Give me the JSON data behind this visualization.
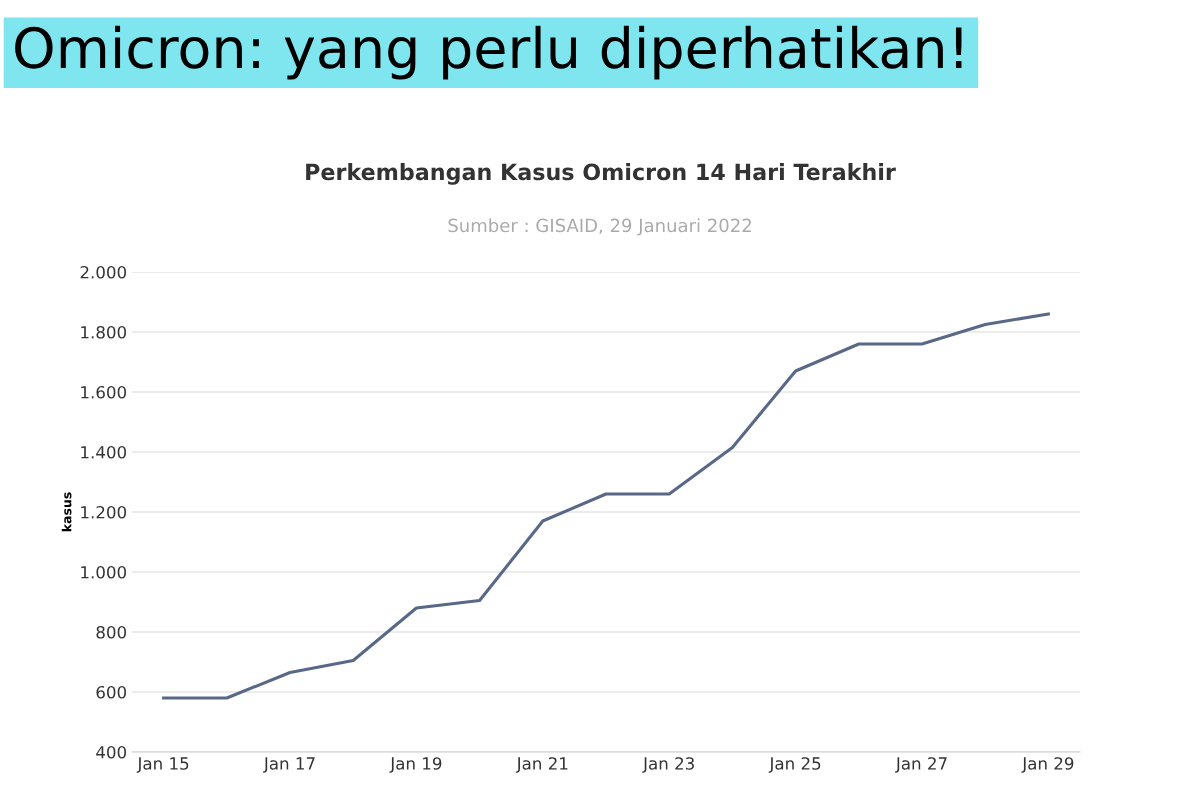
{
  "chart_data": {
    "type": "line",
    "title": "Perkembangan Kasus Omicron 14 Hari Terakhir",
    "subtitle": "Sumber : GISAID, 29 Januari 2022",
    "ylabel": "kasus",
    "annotations": [
      "Omicron: yang perlu diperhatikan!"
    ],
    "x": [
      "2022-01-15",
      "2022-01-16",
      "2022-01-17",
      "2022-01-18",
      "2022-01-19",
      "2022-01-20",
      "2022-01-21",
      "2022-01-22",
      "2022-01-23",
      "2022-01-24",
      "2022-01-25",
      "2022-01-26",
      "2022-01-27",
      "2022-01-28",
      "2022-01-29"
    ],
    "series": [
      {
        "color": "#5a6888",
        "values": [
          580,
          580,
          665,
          705,
          880,
          905,
          1170,
          1260,
          1260,
          1415,
          1670,
          1760,
          1760,
          1825,
          1860
        ]
      }
    ],
    "xlim": [
      "2022-01-14T12:00",
      "2022-01-29T12:00"
    ],
    "xticks": [
      {
        "value": "2022-01-15",
        "label": "Jan 15"
      },
      {
        "value": "2022-01-17",
        "label": "Jan 17"
      },
      {
        "value": "2022-01-19",
        "label": "Jan 19"
      },
      {
        "value": "2022-01-21",
        "label": "Jan 21"
      },
      {
        "value": "2022-01-23",
        "label": "Jan 23"
      },
      {
        "value": "2022-01-25",
        "label": "Jan 25"
      },
      {
        "value": "2022-01-27",
        "label": "Jan 27"
      },
      {
        "value": "2022-01-29",
        "label": "Jan 29"
      }
    ],
    "ylim": [
      400,
      2000
    ],
    "yticks": [
      {
        "value": 400,
        "label": "400"
      },
      {
        "value": 600,
        "label": "600"
      },
      {
        "value": 800,
        "label": "800"
      },
      {
        "value": 1000,
        "label": "1.000"
      },
      {
        "value": 1200,
        "label": "1.200"
      },
      {
        "value": 1400,
        "label": "1.400"
      },
      {
        "value": 1600,
        "label": "1.600"
      },
      {
        "value": 1800,
        "label": "1.800"
      },
      {
        "value": 2000,
        "label": "2.000"
      }
    ],
    "grid": "y",
    "marker": "none",
    "line_style": "solid",
    "legend": false
  }
}
